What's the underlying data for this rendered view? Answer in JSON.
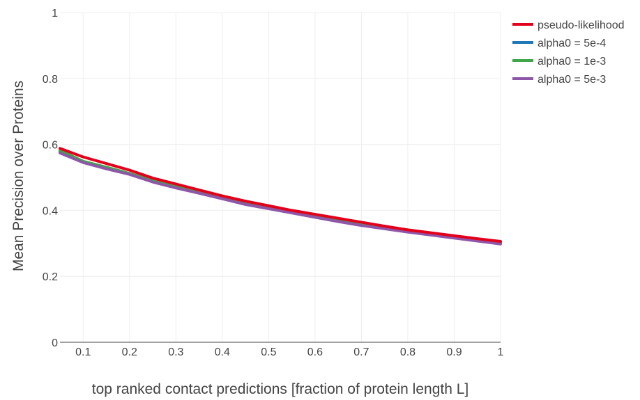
{
  "chart_data": {
    "type": "line",
    "xlabel": "top ranked contact predictions [fraction of protein length L]",
    "ylabel": "Mean Precision over Proteins",
    "xlim": [
      0.05,
      1.0
    ],
    "ylim": [
      0,
      1
    ],
    "x_ticks": [
      "0.1",
      "0.2",
      "0.3",
      "0.4",
      "0.5",
      "0.6",
      "0.7",
      "0.8",
      "0.9",
      "1"
    ],
    "y_ticks": [
      "0",
      "0.2",
      "0.4",
      "0.6",
      "0.8",
      "1"
    ],
    "grid": true,
    "legend_position": "top-right",
    "x": [
      0.05,
      0.1,
      0.15,
      0.2,
      0.25,
      0.3,
      0.35,
      0.4,
      0.45,
      0.5,
      0.55,
      0.6,
      0.65,
      0.7,
      0.75,
      0.8,
      0.85,
      0.9,
      0.95,
      1.0
    ],
    "series": [
      {
        "name": "pseudo-likelihood",
        "color": "#e3001b",
        "values": [
          0.588,
          0.562,
          0.542,
          0.522,
          0.498,
          0.48,
          0.462,
          0.444,
          0.428,
          0.414,
          0.4,
          0.388,
          0.376,
          0.364,
          0.352,
          0.341,
          0.332,
          0.323,
          0.314,
          0.306
        ]
      },
      {
        "name": "alpha0 = 5e-4",
        "color": "#1f77b4",
        "values": [
          0.578,
          0.547,
          0.528,
          0.51,
          0.489,
          0.472,
          0.455,
          0.437,
          0.421,
          0.408,
          0.394,
          0.382,
          0.37,
          0.358,
          0.347,
          0.337,
          0.327,
          0.318,
          0.309,
          0.301
        ]
      },
      {
        "name": "alpha0 = 1e-3",
        "color": "#3fa64a",
        "values": [
          0.582,
          0.549,
          0.531,
          0.512,
          0.491,
          0.475,
          0.458,
          0.44,
          0.424,
          0.411,
          0.397,
          0.385,
          0.373,
          0.361,
          0.349,
          0.339,
          0.329,
          0.32,
          0.311,
          0.303
        ]
      },
      {
        "name": "alpha0 = 5e-3",
        "color": "#8e56a8",
        "values": [
          0.574,
          0.545,
          0.526,
          0.509,
          0.486,
          0.468,
          0.452,
          0.435,
          0.418,
          0.405,
          0.392,
          0.379,
          0.366,
          0.354,
          0.344,
          0.334,
          0.325,
          0.316,
          0.307,
          0.298
        ]
      }
    ]
  }
}
